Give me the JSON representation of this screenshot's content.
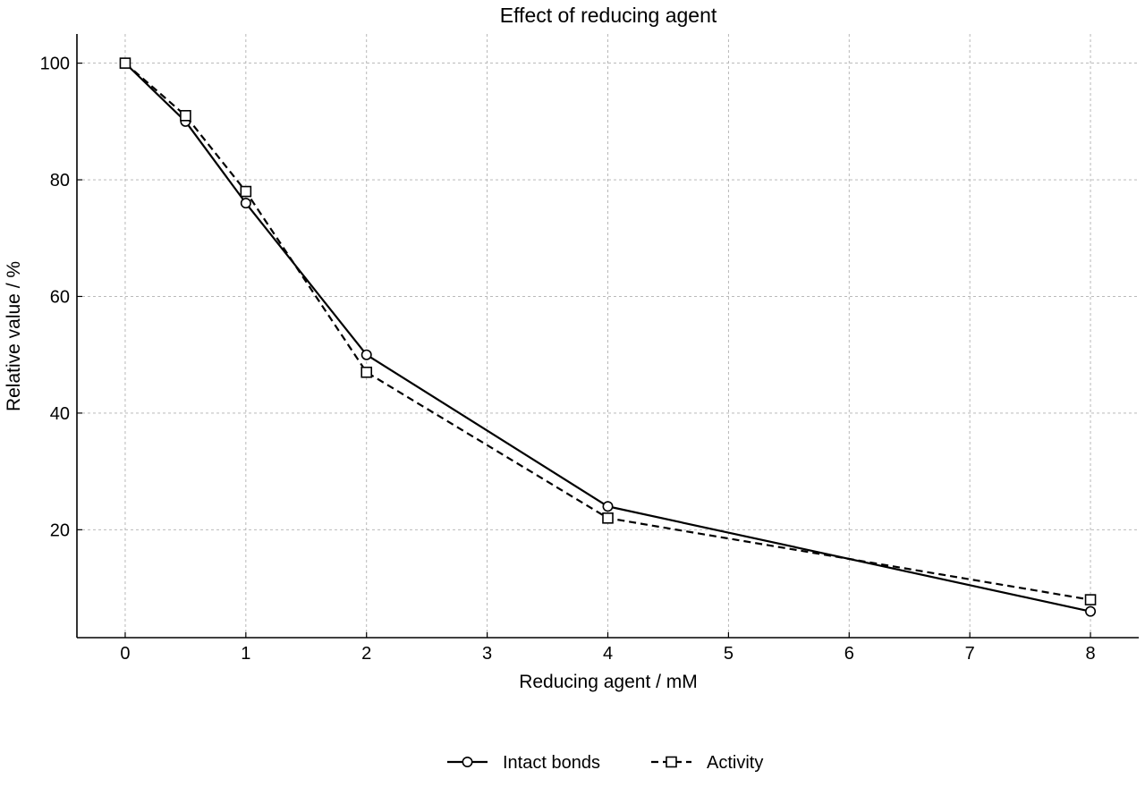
{
  "chart_data": {
    "type": "line",
    "title": "Effect of reducing agent",
    "xlabel": "Reducing agent / mM",
    "ylabel": "Relative value / %",
    "xlim": [
      -0.4,
      8.4
    ],
    "ylim": [
      1.5,
      105
    ],
    "x_ticks": [
      0,
      1,
      2,
      3,
      4,
      5,
      6,
      7,
      8
    ],
    "y_ticks": [
      20,
      40,
      60,
      80,
      100
    ],
    "grid": true,
    "legend_position": "bottom-center",
    "series": [
      {
        "name": "Intact bonds",
        "x": [
          0,
          0.5,
          1,
          2,
          4,
          8
        ],
        "y": [
          100,
          90,
          76,
          50,
          24,
          6
        ],
        "line_style": "solid",
        "marker": "circle",
        "color": "#000000"
      },
      {
        "name": "Activity",
        "x": [
          0,
          0.5,
          1,
          2,
          4,
          8
        ],
        "y": [
          100,
          91,
          78,
          47,
          22,
          8
        ],
        "line_style": "dashed",
        "marker": "square",
        "color": "#000000"
      }
    ]
  }
}
